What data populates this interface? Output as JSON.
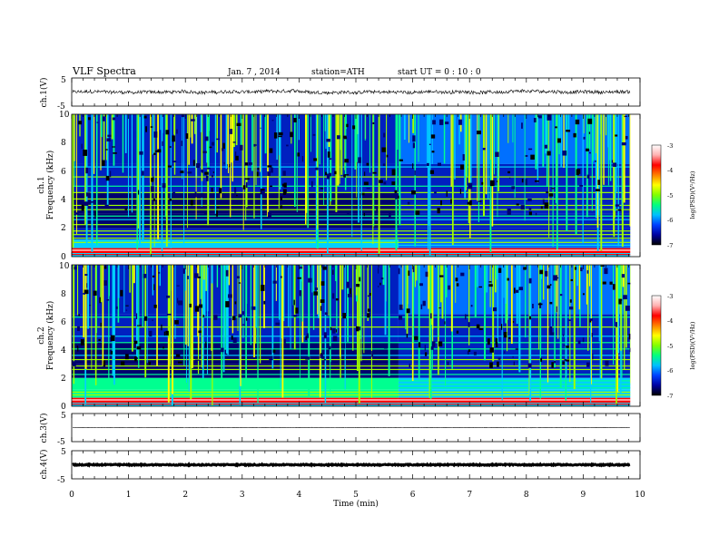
{
  "header": {
    "title": "VLF Spectra",
    "date": "Jan. 7 , 2014",
    "station": "station=ATH",
    "start": "start UT = 0 : 10 : 0"
  },
  "chart_data": {
    "type": "spectrogram",
    "xlabel": "Time (min)",
    "xlim": [
      0,
      10
    ],
    "x_ticks": [
      "0",
      "1",
      "2",
      "3",
      "4",
      "5",
      "6",
      "7",
      "8",
      "9",
      "10"
    ],
    "data_end_min": 9.83,
    "spectrum_step_min": 5.75,
    "panels": [
      {
        "kind": "waveform",
        "ylabel": "ch.1(V)",
        "ylim": [
          -5,
          5
        ],
        "y_tick_labels": [
          "5",
          "-5"
        ],
        "baseline_v": 0,
        "noise_amplitude_v": 0.6
      },
      {
        "kind": "spectrogram",
        "ylabel": "ch.1",
        "ylabel2": "Frequency (kHz)",
        "ylim": [
          0,
          10
        ],
        "y_tick_labels": [
          "0",
          "2",
          "4",
          "6",
          "8",
          "10"
        ],
        "colorbar": {
          "label": "log(PSD)(V²/Hz)",
          "range": [
            -7,
            -3
          ],
          "tick_labels": [
            "-3",
            "-4",
            "-5",
            "-6",
            "-7"
          ]
        }
      },
      {
        "kind": "spectrogram",
        "ylabel": "ch.2",
        "ylabel2": "Frequency (kHz)",
        "ylim": [
          0,
          10
        ],
        "y_tick_labels": [
          "0",
          "2",
          "4",
          "6",
          "8",
          "10"
        ],
        "colorbar": {
          "label": "log(PSD)(V²/Hz)",
          "range": [
            -7,
            -3
          ],
          "tick_labels": [
            "-3",
            "-4",
            "-5",
            "-6",
            "-7"
          ]
        }
      },
      {
        "kind": "waveform",
        "ylabel": "ch.3(V)",
        "ylim": [
          -5,
          5
        ],
        "y_tick_labels": [
          "5",
          "-5"
        ],
        "baseline_v": 0,
        "noise_amplitude_v": 0.05
      },
      {
        "kind": "waveform",
        "ylabel": "ch.4(V)",
        "ylim": [
          -5,
          5
        ],
        "y_tick_labels": [
          "5",
          "-5"
        ],
        "baseline_v": 0,
        "noise_amplitude_v": 0.2
      }
    ],
    "colormap": [
      "#000000",
      "#000070",
      "#0020c0",
      "#0070ff",
      "#00d0ff",
      "#00ff90",
      "#a0ff00",
      "#ffff00",
      "#ff9000",
      "#ff0000",
      "#ffffff"
    ]
  }
}
